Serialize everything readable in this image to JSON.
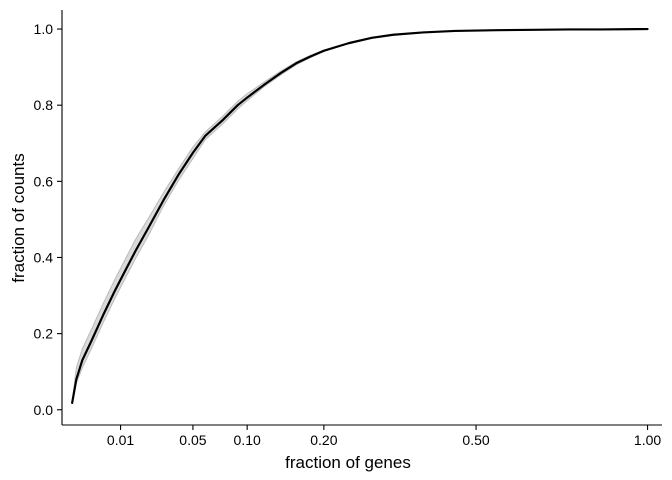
{
  "chart_data": {
    "type": "line",
    "xlabel": "fraction of genes",
    "ylabel": "fraction of counts",
    "x_scale": "sqrt",
    "xlim": [
      0,
      1.05
    ],
    "ylim": [
      -0.04,
      1.05
    ],
    "x_ticks": [
      0.01,
      0.05,
      0.1,
      0.2,
      0.5,
      1.0
    ],
    "x_tick_labels": [
      "0.01",
      "0.05",
      "0.10",
      "0.20",
      "0.50",
      "1.00"
    ],
    "y_ticks": [
      0.0,
      0.2,
      0.4,
      0.6,
      0.8,
      1.0
    ],
    "y_tick_labels": [
      "0.0",
      "0.2",
      "0.4",
      "0.6",
      "0.8",
      "1.0"
    ],
    "grid": false,
    "legend": "none",
    "main_color": "#000000",
    "band_color": "#bbbbbb",
    "series": [
      {
        "role": "main",
        "x": [
          0.0003,
          0.0006,
          0.0012,
          0.0025,
          0.005,
          0.008,
          0.012,
          0.016,
          0.022,
          0.03,
          0.04,
          0.05,
          0.06,
          0.075,
          0.09,
          0.1,
          0.12,
          0.14,
          0.16,
          0.18,
          0.2,
          0.24,
          0.28,
          0.32,
          0.38,
          0.45,
          0.5,
          0.55,
          0.65,
          0.75,
          0.85,
          1.0
        ],
        "y": [
          0.018,
          0.08,
          0.13,
          0.18,
          0.25,
          0.31,
          0.37,
          0.42,
          0.48,
          0.55,
          0.62,
          0.675,
          0.72,
          0.76,
          0.8,
          0.82,
          0.855,
          0.885,
          0.91,
          0.928,
          0.943,
          0.963,
          0.977,
          0.985,
          0.991,
          0.995,
          0.996,
          0.997,
          0.998,
          0.999,
          0.999,
          1.0
        ]
      },
      {
        "role": "upper-band",
        "x": [
          0.0003,
          0.0006,
          0.0012,
          0.0025,
          0.005,
          0.008,
          0.012,
          0.016,
          0.022,
          0.03,
          0.04,
          0.05,
          0.06,
          0.075,
          0.09,
          0.1,
          0.12,
          0.14,
          0.16,
          0.18,
          0.2,
          0.24,
          0.28,
          0.32,
          0.38,
          0.45,
          0.5,
          0.55,
          0.65,
          0.75,
          0.85,
          1.0
        ],
        "y": [
          0.02,
          0.11,
          0.16,
          0.21,
          0.28,
          0.34,
          0.4,
          0.45,
          0.505,
          0.57,
          0.635,
          0.69,
          0.73,
          0.77,
          0.81,
          0.83,
          0.862,
          0.89,
          0.914,
          0.931,
          0.945,
          0.964,
          0.978,
          0.986,
          0.992,
          0.995,
          0.996,
          0.997,
          0.998,
          0.999,
          0.999,
          1.0
        ]
      },
      {
        "role": "lower-band",
        "x": [
          0.0003,
          0.0006,
          0.0012,
          0.0025,
          0.005,
          0.008,
          0.012,
          0.016,
          0.022,
          0.03,
          0.04,
          0.05,
          0.06,
          0.075,
          0.09,
          0.1,
          0.12,
          0.14,
          0.16,
          0.18,
          0.2,
          0.24,
          0.28,
          0.32,
          0.38,
          0.45,
          0.5,
          0.55,
          0.65,
          0.75,
          0.85,
          1.0
        ],
        "y": [
          0.016,
          0.07,
          0.11,
          0.16,
          0.23,
          0.29,
          0.35,
          0.4,
          0.46,
          0.535,
          0.605,
          0.66,
          0.71,
          0.75,
          0.79,
          0.812,
          0.85,
          0.88,
          0.906,
          0.925,
          0.941,
          0.962,
          0.976,
          0.985,
          0.991,
          0.995,
          0.996,
          0.997,
          0.998,
          0.999,
          0.999,
          1.0
        ]
      }
    ]
  }
}
